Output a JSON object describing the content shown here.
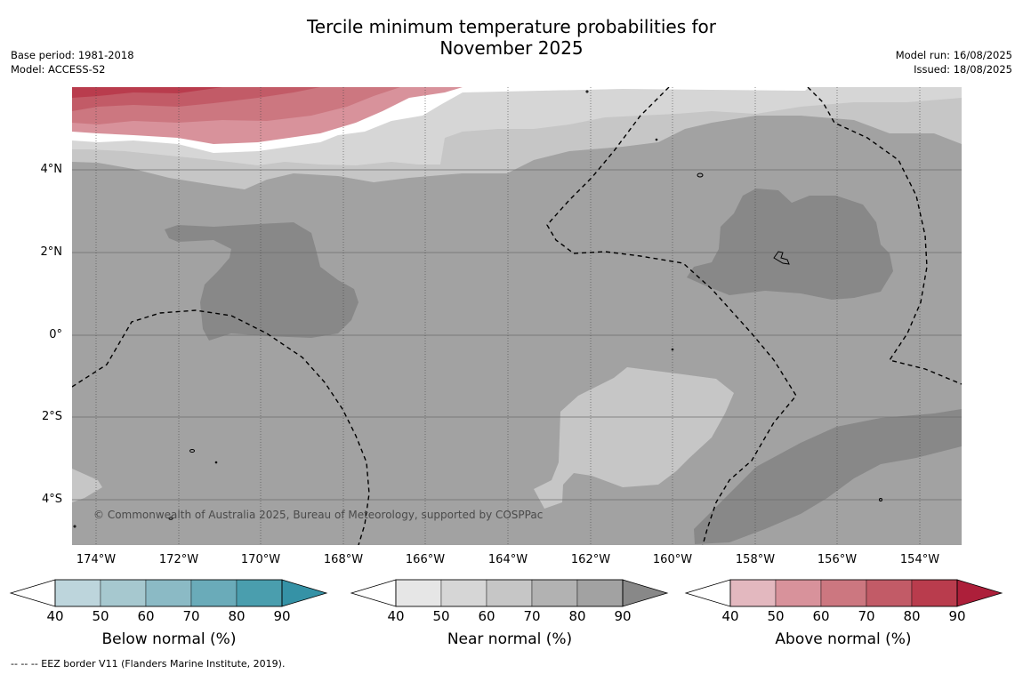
{
  "title_line1": "Tercile minimum temperature probabilities for",
  "title_line2": "November 2025",
  "base_period": "Base period: 1981-2018",
  "model": "Model: ACCESS-S2",
  "model_run": "Model run: 16/08/2025",
  "issued": "Issued: 18/08/2025",
  "copyright": "© Commonwealth of Australia 2025, Bureau of Meteorology, supported by COSPPac",
  "footnote": "--  --  -- EEZ border V11 (Flanders Marine Institute, 2019).",
  "lat_labels": [
    "4°N",
    "2°N",
    "0°",
    "2°S",
    "4°S"
  ],
  "lon_labels": [
    "174°W",
    "172°W",
    "170°W",
    "168°W",
    "166°W",
    "164°W",
    "162°W",
    "160°W",
    "158°W",
    "156°W",
    "154°W"
  ],
  "colorbars": [
    {
      "title": "Below normal (%)",
      "ticks": [
        "40",
        "50",
        "60",
        "70",
        "80",
        "90"
      ],
      "colors": [
        "#bdd5dc",
        "#a6c8cf",
        "#8bbac5",
        "#6aabb9",
        "#4a9eae",
        "#3592a6"
      ]
    },
    {
      "title": "Near normal (%)",
      "ticks": [
        "40",
        "50",
        "60",
        "70",
        "80",
        "90"
      ],
      "colors": [
        "#e6e6e6",
        "#d6d6d6",
        "#c6c6c6",
        "#b2b2b2",
        "#a2a2a2",
        "#888888"
      ]
    },
    {
      "title": "Above normal (%)",
      "ticks": [
        "40",
        "50",
        "60",
        "70",
        "80",
        "90"
      ],
      "colors": [
        "#e3b8bf",
        "#d8929b",
        "#cc7780",
        "#c25b67",
        "#b93c4d",
        "#ad1f3a"
      ]
    }
  ]
}
